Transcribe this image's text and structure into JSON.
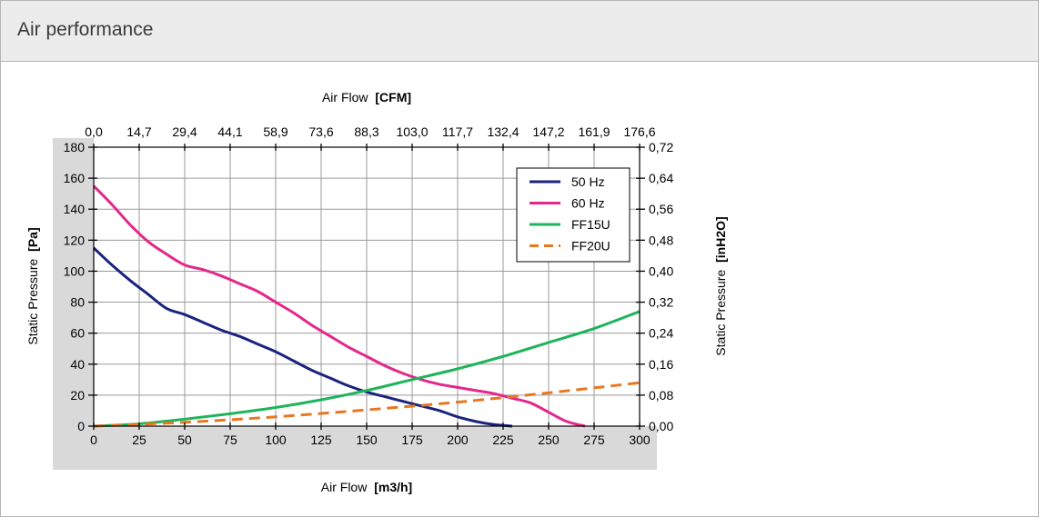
{
  "panel": {
    "title": "Air performance"
  },
  "chart_data": {
    "type": "line",
    "top_axis": {
      "label": "Air Flow",
      "unit": "[CFM]",
      "ticks": [
        "0,0",
        "14,7",
        "29,4",
        "44,1",
        "58,9",
        "73,6",
        "88,3",
        "103,0",
        "117,7",
        "132,4",
        "147,2",
        "161,9",
        "176,6"
      ]
    },
    "bottom_axis": {
      "label": "Air Flow",
      "unit": "[m3/h]",
      "ticks": [
        "0",
        "25",
        "50",
        "75",
        "100",
        "125",
        "150",
        "175",
        "200",
        "225",
        "250",
        "275",
        "300"
      ],
      "range": [
        0,
        300
      ]
    },
    "left_axis": {
      "label": "Static Pressure",
      "unit": "[Pa]",
      "ticks": [
        "0",
        "20",
        "40",
        "60",
        "80",
        "100",
        "120",
        "140",
        "160",
        "180"
      ],
      "range": [
        0,
        180
      ]
    },
    "right_axis": {
      "label": "Static Pressure",
      "unit": "[inH2O]",
      "ticks": [
        "0,00",
        "0,08",
        "0,16",
        "0,24",
        "0,32",
        "0,40",
        "0,48",
        "0,56",
        "0,64",
        "0,72"
      ]
    },
    "grid": true,
    "legend_position": "top-right",
    "series": [
      {
        "name": "50 Hz",
        "color": "#1a237e",
        "style": "solid",
        "x": [
          0,
          10,
          20,
          30,
          40,
          50,
          60,
          70,
          80,
          90,
          100,
          110,
          120,
          130,
          140,
          150,
          160,
          170,
          180,
          190,
          200,
          210,
          220,
          230
        ],
        "y": [
          115,
          104,
          94,
          85,
          76,
          72,
          67,
          62,
          58,
          53,
          48,
          42,
          36,
          31,
          26,
          22,
          19,
          16,
          13,
          10,
          6,
          3,
          1,
          0
        ]
      },
      {
        "name": "60 Hz",
        "color": "#e4278a",
        "style": "solid",
        "x": [
          0,
          10,
          20,
          30,
          40,
          50,
          60,
          70,
          80,
          90,
          100,
          110,
          120,
          130,
          140,
          150,
          160,
          170,
          180,
          190,
          200,
          210,
          220,
          230,
          240,
          250,
          260,
          270
        ],
        "y": [
          155,
          143,
          130,
          119,
          111,
          104,
          101,
          97,
          92,
          87,
          80,
          73,
          65,
          58,
          51,
          45,
          39,
          34,
          30,
          27,
          25,
          23,
          21,
          18,
          15,
          9,
          3,
          0
        ]
      },
      {
        "name": "FF15U",
        "color": "#1db45a",
        "style": "solid",
        "x": [
          0,
          25,
          50,
          75,
          100,
          125,
          150,
          175,
          200,
          225,
          250,
          275,
          300
        ],
        "y": [
          0,
          1.5,
          4.5,
          8,
          12,
          17,
          23,
          30,
          37,
          45,
          54,
          63,
          74
        ]
      },
      {
        "name": "FF20U",
        "color": "#e87722",
        "style": "dashed",
        "x": [
          0,
          50,
          100,
          150,
          200,
          250,
          300
        ],
        "y": [
          0,
          2.5,
          6,
          10.5,
          15.5,
          21.5,
          28
        ]
      }
    ]
  }
}
